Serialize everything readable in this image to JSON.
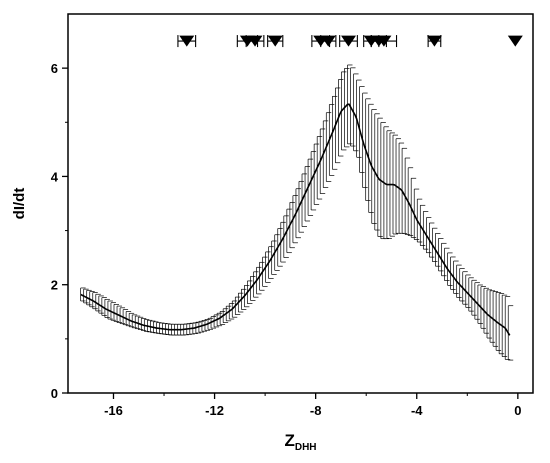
{
  "chart_data": {
    "type": "line",
    "xlabel": "Z",
    "xlabel_sub": "DHH",
    "ylabel": "dI/dt",
    "xlim": [
      -17.8,
      0.6
    ],
    "ylim": [
      0,
      7
    ],
    "x_ticks": [
      -16,
      -12,
      -8,
      -4,
      0
    ],
    "y_ticks": [
      0,
      2,
      4,
      6
    ],
    "grid": false,
    "series": [
      {
        "x": [
          -17.3,
          -16.8,
          -16.3,
          -15.8,
          -15.3,
          -14.8,
          -14.3,
          -13.8,
          -13.3,
          -12.8,
          -12.3,
          -11.8,
          -11.3,
          -10.8,
          -10.3,
          -9.8,
          -9.3,
          -8.8,
          -8.3,
          -7.8,
          -7.3,
          -7.0,
          -6.7,
          -6.4,
          -6.1,
          -5.8,
          -5.5,
          -5.2,
          -4.9,
          -4.6,
          -4.3,
          -4.0,
          -3.6,
          -3.2,
          -2.8,
          -2.4,
          -2.0,
          -1.6,
          -1.2,
          -0.8,
          -0.5,
          -0.3
        ],
        "y": [
          1.82,
          1.7,
          1.55,
          1.44,
          1.33,
          1.25,
          1.2,
          1.17,
          1.17,
          1.2,
          1.27,
          1.38,
          1.55,
          1.8,
          2.1,
          2.45,
          2.85,
          3.3,
          3.8,
          4.3,
          4.85,
          5.2,
          5.35,
          5.1,
          4.6,
          4.2,
          3.95,
          3.85,
          3.85,
          3.75,
          3.5,
          3.2,
          2.9,
          2.6,
          2.3,
          2.05,
          1.85,
          1.65,
          1.45,
          1.3,
          1.2,
          1.05
        ],
        "error": [
          0.12,
          0.15,
          0.17,
          0.15,
          0.12,
          0.11,
          0.1,
          0.1,
          0.1,
          0.1,
          0.1,
          0.12,
          0.15,
          0.2,
          0.25,
          0.3,
          0.38,
          0.45,
          0.52,
          0.6,
          0.68,
          0.72,
          0.73,
          0.7,
          0.9,
          1.05,
          1.1,
          1.0,
          0.9,
          0.8,
          0.6,
          0.4,
          0.32,
          0.3,
          0.3,
          0.3,
          0.3,
          0.35,
          0.45,
          0.55,
          0.58,
          0.45
        ]
      }
    ],
    "markers": {
      "shape": "triangle-down",
      "y": 6.5,
      "points": [
        {
          "x": -13.1,
          "err": 0.35
        },
        {
          "x": -10.7,
          "err": 0.4
        },
        {
          "x": -10.4,
          "err": 0.35
        },
        {
          "x": -9.6,
          "err": 0.3
        },
        {
          "x": -7.8,
          "err": 0.35
        },
        {
          "x": -7.5,
          "err": 0.3
        },
        {
          "x": -6.7,
          "err": 0.35
        },
        {
          "x": -5.8,
          "err": 0.3
        },
        {
          "x": -5.5,
          "err": 0.3
        },
        {
          "x": -5.3,
          "err": 0.5
        },
        {
          "x": -3.3,
          "err": 0.25
        },
        {
          "x": -0.1,
          "err": 0
        }
      ]
    }
  }
}
